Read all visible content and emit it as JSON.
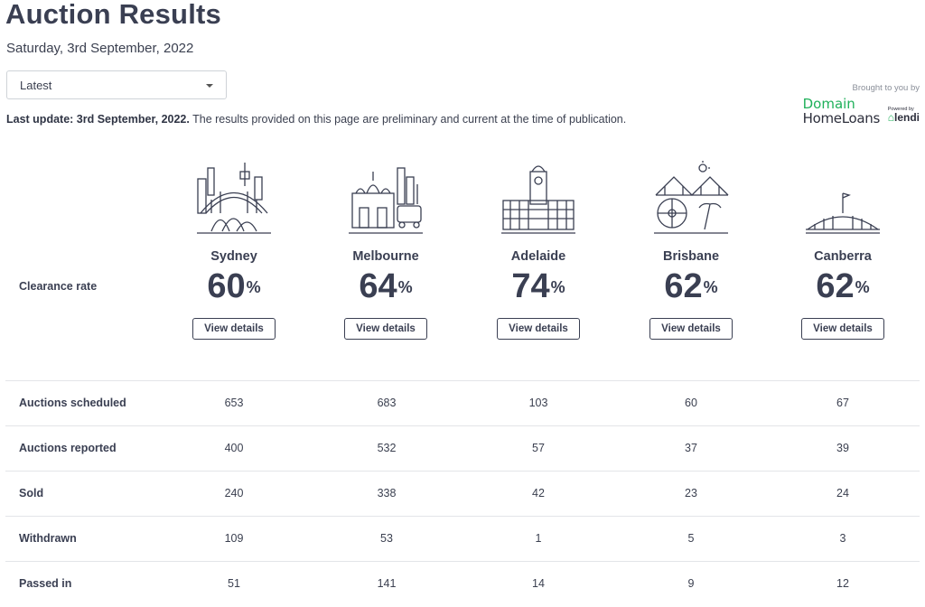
{
  "page": {
    "title": "Auction Results",
    "date": "Saturday, 3rd September, 2022",
    "dropdown": {
      "selected": "Latest"
    },
    "update": {
      "bold": "Last update: 3rd September, 2022.",
      "text": " The results provided on this page are preliminary and current at the time of publication."
    }
  },
  "sponsor": {
    "brought_by": "Brought to you by",
    "logo_line1": "Domain",
    "logo_line2": "HomeLoans",
    "powered_by": "Powered by",
    "partner": "lendi"
  },
  "clearance_label": "Clearance rate",
  "view_details_label": "View details",
  "percent_symbol": "%",
  "cities": [
    {
      "name": "Sydney",
      "rate": "60",
      "icon": "sydney-skyline-icon"
    },
    {
      "name": "Melbourne",
      "rate": "64",
      "icon": "melbourne-skyline-icon"
    },
    {
      "name": "Adelaide",
      "rate": "74",
      "icon": "adelaide-skyline-icon"
    },
    {
      "name": "Brisbane",
      "rate": "62",
      "icon": "brisbane-skyline-icon"
    },
    {
      "name": "Canberra",
      "rate": "62",
      "icon": "canberra-parliament-icon"
    }
  ],
  "rows": [
    {
      "label": "Auctions scheduled",
      "values": [
        "653",
        "683",
        "103",
        "60",
        "67"
      ]
    },
    {
      "label": "Auctions reported",
      "values": [
        "400",
        "532",
        "57",
        "37",
        "39"
      ]
    },
    {
      "label": "Sold",
      "values": [
        "240",
        "338",
        "42",
        "23",
        "24"
      ]
    },
    {
      "label": "Withdrawn",
      "values": [
        "109",
        "53",
        "1",
        "5",
        "3"
      ]
    },
    {
      "label": "Passed in",
      "values": [
        "51",
        "141",
        "14",
        "9",
        "12"
      ]
    }
  ],
  "colors": {
    "brand_green": "#1fb05a",
    "text_dark": "#3a3f52",
    "divider": "#e3e5e8"
  }
}
